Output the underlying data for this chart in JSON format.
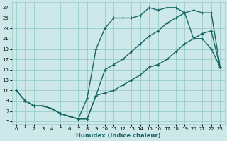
{
  "xlabel": "Humidex (Indice chaleur)",
  "bg_color": "#cce8e8",
  "grid_color": "#99cccc",
  "line_color": "#1a6666",
  "xlim": [
    -0.5,
    23.5
  ],
  "ylim": [
    4.5,
    28
  ],
  "xticks": [
    0,
    1,
    2,
    3,
    4,
    5,
    6,
    7,
    8,
    9,
    10,
    11,
    12,
    13,
    14,
    15,
    16,
    17,
    18,
    19,
    20,
    21,
    22,
    23
  ],
  "yticks": [
    5,
    7,
    9,
    11,
    13,
    15,
    17,
    19,
    21,
    23,
    25,
    27
  ],
  "line1_x": [
    0,
    1,
    2,
    3,
    4,
    5,
    6,
    7,
    8,
    9,
    10,
    11,
    12,
    13,
    14,
    15,
    16,
    17,
    18,
    19,
    20,
    21,
    22,
    23
  ],
  "line1_y": [
    11,
    9,
    8,
    8,
    7.5,
    6.5,
    6,
    5.5,
    9.5,
    19,
    23,
    25,
    25,
    25,
    25.5,
    27,
    26.5,
    27,
    27,
    26,
    21,
    21,
    19,
    15.5
  ],
  "line2_x": [
    0,
    1,
    2,
    3,
    4,
    5,
    6,
    7,
    8,
    9,
    10,
    11,
    12,
    13,
    14,
    15,
    16,
    17,
    18,
    19,
    20,
    21,
    22,
    23
  ],
  "line2_y": [
    11,
    9,
    8,
    8,
    7.5,
    6.5,
    6,
    5.5,
    5.5,
    10,
    15,
    16,
    17,
    18.5,
    20,
    21.5,
    22.5,
    24,
    25,
    26,
    26.5,
    26,
    26,
    15.5
  ],
  "line3_x": [
    0,
    1,
    2,
    3,
    4,
    5,
    6,
    7,
    8,
    9,
    10,
    11,
    12,
    13,
    14,
    15,
    16,
    17,
    18,
    19,
    20,
    21,
    22,
    23
  ],
  "line3_y": [
    11,
    9,
    8,
    8,
    7.5,
    6.5,
    6,
    5.5,
    5.5,
    10,
    10.5,
    11,
    12,
    13,
    14,
    15.5,
    16,
    17,
    18.5,
    20,
    21,
    22,
    22.5,
    15.5
  ],
  "marker_size": 2.5,
  "line_width": 1.0
}
